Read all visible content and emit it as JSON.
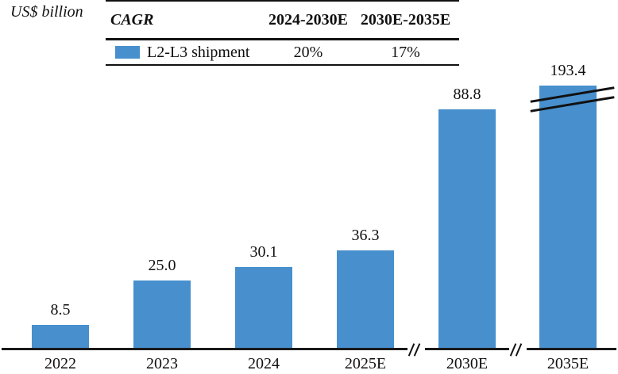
{
  "unit_label": "US$ billion",
  "cagr_table": {
    "title": "CAGR",
    "columns": [
      "2024-2030E",
      "2030E-2035E"
    ],
    "rows": [
      {
        "legend": "L2-L3 shipment",
        "swatch_color": "#478FCD",
        "values": [
          "20%",
          "17%"
        ]
      }
    ]
  },
  "chart_data": {
    "type": "bar",
    "title": "",
    "ylabel": "US$ billion",
    "series_name": "L2-L3 shipment",
    "categories": [
      "2022",
      "2023",
      "2024",
      "2025E",
      "2030E",
      "2035E"
    ],
    "values": [
      8.5,
      25.0,
      30.1,
      36.3,
      88.8,
      193.4
    ],
    "value_labels": [
      "8.5",
      "25.0",
      "30.1",
      "36.3",
      "88.8",
      "193.4"
    ],
    "bar_color": "#478FCD",
    "grid": "off",
    "legend_position": "top-table",
    "axis_breaks_after": [
      "2025E",
      "2030E"
    ],
    "truncated_bar": {
      "category": "2035E",
      "display_value": 97.6
    }
  }
}
